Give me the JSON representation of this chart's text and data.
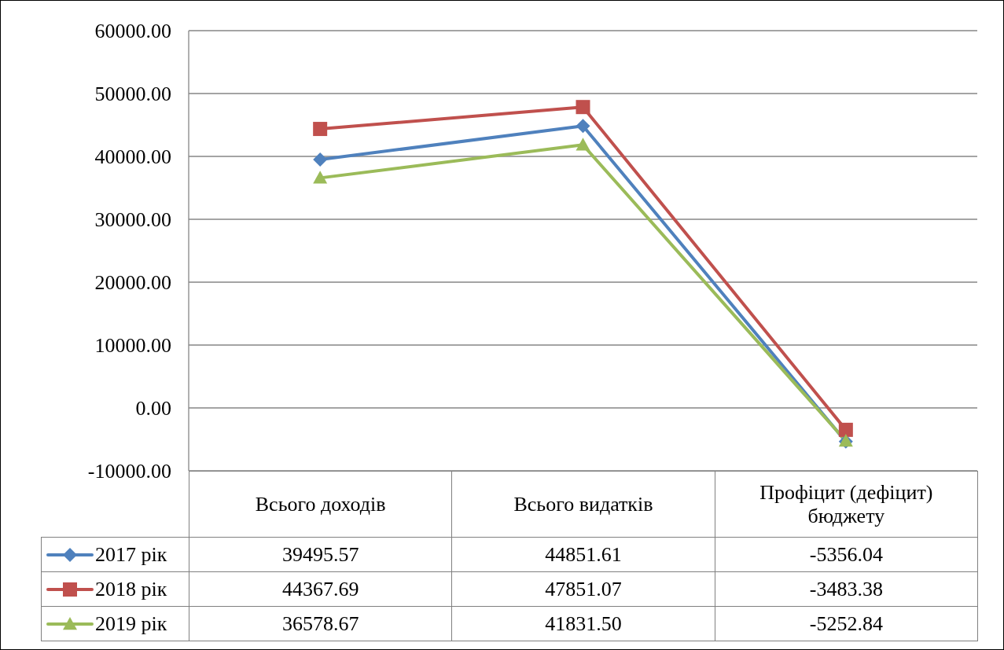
{
  "chart_data": {
    "type": "line",
    "categories": [
      "Всього доходів",
      "Всього видатків",
      "Профіцит (дефіцит) бюджету"
    ],
    "series": [
      {
        "name": "2017 рік",
        "color": "#4f81bd",
        "marker": "diamond",
        "values": [
          39495.57,
          44851.61,
          -5356.04
        ],
        "value_labels": [
          "39495.57",
          "44851.61",
          "-5356.04"
        ]
      },
      {
        "name": "2018 рік",
        "color": "#c0504d",
        "marker": "square",
        "values": [
          44367.69,
          47851.07,
          -3483.38
        ],
        "value_labels": [
          "44367.69",
          "47851.07",
          "-3483.38"
        ]
      },
      {
        "name": "2019 рік",
        "color": "#9bbb59",
        "marker": "triangle",
        "values": [
          36578.67,
          41831.5,
          -5252.84
        ],
        "value_labels": [
          "36578.67",
          "41831.50",
          "-5252.84"
        ]
      }
    ],
    "ylim": [
      -10000,
      60000
    ],
    "yticks": [
      {
        "value": -10000,
        "label": "-10000.00"
      },
      {
        "value": 0,
        "label": "0.00"
      },
      {
        "value": 10000,
        "label": "10000.00"
      },
      {
        "value": 20000,
        "label": "20000.00"
      },
      {
        "value": 30000,
        "label": "30000.00"
      },
      {
        "value": 40000,
        "label": "40000.00"
      },
      {
        "value": 50000,
        "label": "50000.00"
      },
      {
        "value": 60000,
        "label": "60000.00"
      }
    ],
    "grid": "y",
    "legend": "bottom",
    "line_style": "solid"
  }
}
